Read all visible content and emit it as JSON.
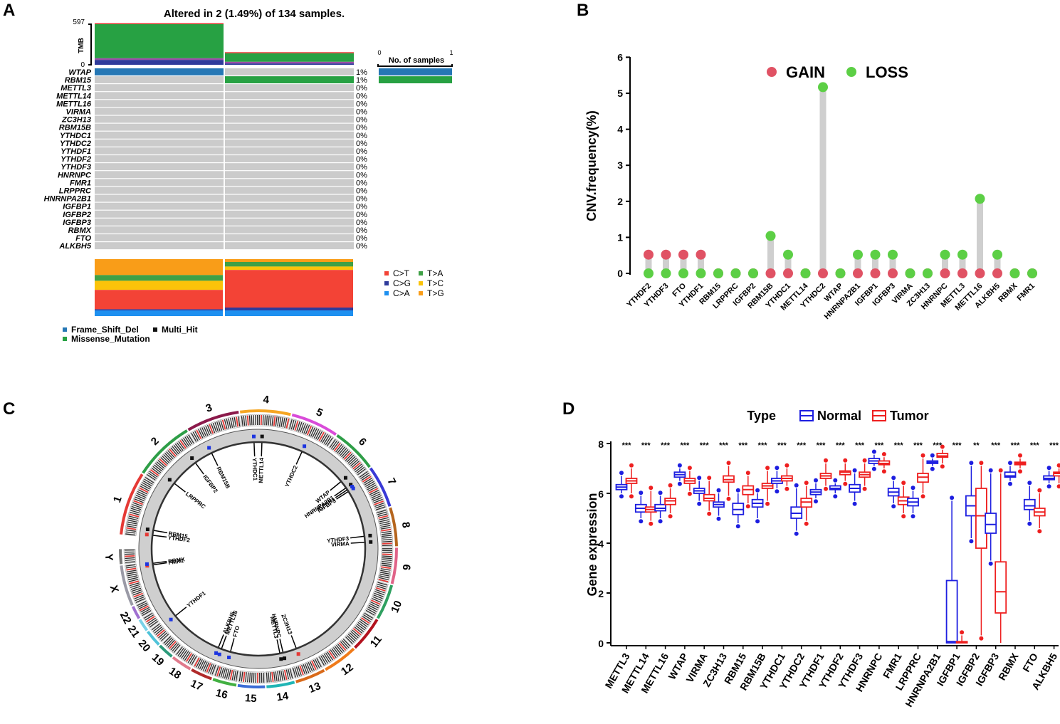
{
  "panels": {
    "a": "A",
    "b": "B",
    "c": "C",
    "d": "D"
  },
  "colors": {
    "wtap": "#2577b5",
    "rbm15": "#27a143",
    "grey": "#cbcbcb",
    "ct": "#f34336",
    "ta": "#3fa046",
    "cg": "#2f3b9b",
    "tc": "#fbc30a",
    "ca": "#1e90f0",
    "tg": "#f99d18",
    "gain": "#e05264",
    "loss": "#5ccf45",
    "stem": "#cfcfcf",
    "normal": "#1d1ee0",
    "tumor": "#ee1f1f"
  },
  "chart_data": [
    {
      "type": "oncoplot",
      "title": "Altered in 2 (1.49%) of 134 samples.",
      "tmb_label": "TMB",
      "tmb_axis": {
        "min": "0",
        "max": "597"
      },
      "samples": 2,
      "tmb": [
        597,
        170
      ],
      "tmb_breakdown": [
        {
          "missense": 500,
          "frameshift": 25,
          "multi_hit": 72
        },
        {
          "missense": 125,
          "frameshift": 25,
          "multi_hit": 20
        }
      ],
      "genes": [
        "WTAP",
        "RBM15",
        "METTL3",
        "METTL14",
        "METTL16",
        "VIRMA",
        "ZC3H13",
        "RBM15B",
        "YTHDC1",
        "YTHDC2",
        "YTHDF1",
        "YTHDF2",
        "YTHDF3",
        "HNRNPC",
        "FMR1",
        "LRPPRC",
        "HNRNPA2B1",
        "IGFBP1",
        "IGFBP2",
        "IGFBP3",
        "RBMX",
        "FTO",
        "ALKBH5"
      ],
      "percent": [
        "1%",
        "1%",
        "0%",
        "0%",
        "0%",
        "0%",
        "0%",
        "0%",
        "0%",
        "0%",
        "0%",
        "0%",
        "0%",
        "0%",
        "0%",
        "0%",
        "0%",
        "0%",
        "0%",
        "0%",
        "0%",
        "0%",
        "0%"
      ],
      "alterations": [
        {
          "gene": "WTAP",
          "sample": 1,
          "type": "Frame_Shift_Del"
        },
        {
          "gene": "RBM15",
          "sample": 2,
          "type": "Missense_Mutation"
        }
      ],
      "no_samples_axis": {
        "title": "No. of samples",
        "min": "0",
        "max": "1"
      },
      "no_samples": [
        1,
        1
      ],
      "titv": [
        {
          "C>T": 0.34,
          "T>A": 0.1,
          "C>G": 0.02,
          "T>C": 0.16,
          "C>A": 0.1,
          "T>G": 0.28
        },
        {
          "C>T": 0.66,
          "T>A": 0.08,
          "C>G": 0.05,
          "T>C": 0.06,
          "C>A": 0.1,
          "T>G": 0.05
        }
      ],
      "titv_legend": [
        "C>T",
        "T>A",
        "C>G",
        "T>C",
        "C>A",
        "T>G"
      ],
      "variant_legend": [
        "Frame_Shift_Del",
        "Multi_Hit",
        "Missense_Mutation"
      ]
    },
    {
      "type": "lollipop",
      "ylabel": "CNV.frequency(%)",
      "ylim": [
        0,
        6
      ],
      "yticks": [
        "0",
        "1",
        "2",
        "3",
        "4",
        "5",
        "6"
      ],
      "legend": [
        "GAIN",
        "LOSS"
      ],
      "categories": [
        "YTHDF2",
        "YTHDF3",
        "FTO",
        "YTHDF1",
        "RBM15",
        "LRPPRC",
        "IGFBP2",
        "RBM15B",
        "YTHDC1",
        "METTL14",
        "YTHDC2",
        "WTAP",
        "HNRNPA2B1",
        "IGFBP1",
        "IGFBP3",
        "VIRMA",
        "ZC3H13",
        "HNRNPC",
        "METTL3",
        "METTL16",
        "ALKBH5",
        "RBMX",
        "FMR1"
      ],
      "gain": [
        0.52,
        0.52,
        0.52,
        0.52,
        0,
        0,
        0,
        0,
        0,
        0,
        0,
        0,
        0,
        0,
        0,
        0,
        0,
        0,
        0,
        0,
        0,
        0,
        0
      ],
      "loss": [
        0,
        0,
        0,
        0,
        0,
        0,
        0,
        1.04,
        0.52,
        0,
        5.17,
        0,
        0.52,
        0.52,
        0.52,
        0,
        0,
        0.52,
        0.52,
        2.07,
        0.52,
        0,
        0
      ]
    },
    {
      "type": "circos",
      "chromosomes": [
        "1",
        "2",
        "3",
        "4",
        "5",
        "6",
        "7",
        "8",
        "9",
        "10",
        "11",
        "12",
        "13",
        "14",
        "15",
        "16",
        "17",
        "18",
        "19",
        "20",
        "21",
        "22",
        "X",
        "Y"
      ],
      "genes": [
        {
          "name": "FMR1",
          "c": "X",
          "f": 0.9,
          "mark": "red"
        },
        {
          "name": "RBMX",
          "c": "X",
          "f": 0.95,
          "mark": "blue"
        },
        {
          "name": "YTHDF2",
          "c": "1",
          "f": 0.05,
          "mark": "red"
        },
        {
          "name": "RBM15",
          "c": "1",
          "f": 0.15,
          "mark": "black"
        },
        {
          "name": "LRPPRC",
          "c": "2",
          "f": 0.18,
          "mark": "black"
        },
        {
          "name": "IGFBP2",
          "c": "2",
          "f": 0.8,
          "mark": "black"
        },
        {
          "name": "RBM15B",
          "c": "3",
          "f": 0.2,
          "mark": "blue"
        },
        {
          "name": "YTHDC1",
          "c": "4",
          "f": 0.25,
          "mark": "blue"
        },
        {
          "name": "METTL14",
          "c": "4",
          "f": 0.45,
          "mark": "black"
        },
        {
          "name": "YTHDC2",
          "c": "5",
          "f": 0.5,
          "mark": "blue"
        },
        {
          "name": "WTAP",
          "c": "6",
          "f": 0.85,
          "mark": "black"
        },
        {
          "name": "HNRNPA2B1",
          "c": "7",
          "f": 0.05,
          "mark": "black"
        },
        {
          "name": "IGFBP1",
          "c": "7",
          "f": 0.12,
          "mark": "blue"
        },
        {
          "name": "IGFBP3",
          "c": "7",
          "f": 0.18,
          "mark": "blue"
        },
        {
          "name": "YTHDF3",
          "c": "8",
          "f": 0.65,
          "mark": "black"
        },
        {
          "name": "VIRMA",
          "c": "8",
          "f": 0.85,
          "mark": "black"
        },
        {
          "name": "ZC3H13",
          "c": "13",
          "f": 0.6,
          "mark": "red"
        },
        {
          "name": "METTL3",
          "c": "14",
          "f": 0.3,
          "mark": "black"
        },
        {
          "name": "HNRNPC",
          "c": "14",
          "f": 0.15,
          "mark": "black"
        },
        {
          "name": "FTO",
          "c": "16",
          "f": 0.6,
          "mark": "blue"
        },
        {
          "name": "METTL16",
          "c": "17",
          "f": 0.05,
          "mark": "blue"
        },
        {
          "name": "ALKBH5",
          "c": "17",
          "f": 0.25,
          "mark": "blue"
        },
        {
          "name": "YTHDF1",
          "c": "20",
          "f": 0.7,
          "mark": "blue"
        }
      ]
    },
    {
      "type": "boxplot",
      "legend_title": "Type",
      "series_names": [
        "Normal",
        "Tumor"
      ],
      "ylabel": "Gene expression",
      "ylim": [
        0,
        8
      ],
      "yticks": [
        "0",
        "2",
        "4",
        "6",
        "8"
      ],
      "categories": [
        "METTL3",
        "METTL14",
        "METTL16",
        "WTAP",
        "VIRMA",
        "ZC3H13",
        "RBM15",
        "RBM15B",
        "YTHDC1",
        "YTHDC2",
        "YTHDF1",
        "YTHDF2",
        "YTHDF3",
        "HNRNPC",
        "FMR1",
        "LRPPRC",
        "HNRNPA2B1",
        "IGFBP1",
        "IGFBP2",
        "IGFBP3",
        "RBMX",
        "FTO",
        "ALKBH5"
      ],
      "significance": [
        "***",
        "***",
        "***",
        "***",
        "***",
        "***",
        "***",
        "***",
        "***",
        "***",
        "***",
        "***",
        "***",
        "***",
        "***",
        "***",
        "***",
        "***",
        "**",
        "***",
        "***",
        "***",
        "***"
      ],
      "normal": [
        [
          6.0,
          6.15,
          6.25,
          6.35,
          6.7
        ],
        [
          5.0,
          5.25,
          5.4,
          5.55,
          5.9
        ],
        [
          5.0,
          5.3,
          5.4,
          5.55,
          5.9
        ],
        [
          6.5,
          6.65,
          6.75,
          6.85,
          7.0
        ],
        [
          5.7,
          6.0,
          6.1,
          6.2,
          6.5
        ],
        [
          5.1,
          5.45,
          5.55,
          5.65,
          6.0
        ],
        [
          4.8,
          5.15,
          5.35,
          5.6,
          6.0
        ],
        [
          5.0,
          5.45,
          5.6,
          5.75,
          6.0
        ],
        [
          6.2,
          6.4,
          6.5,
          6.6,
          6.9
        ],
        [
          4.5,
          5.0,
          5.2,
          5.45,
          6.2
        ],
        [
          5.8,
          5.95,
          6.05,
          6.15,
          6.4
        ],
        [
          6.0,
          6.15,
          6.2,
          6.3,
          6.4
        ],
        [
          5.7,
          6.05,
          6.2,
          6.35,
          6.8
        ],
        [
          7.1,
          7.2,
          7.3,
          7.4,
          7.55
        ],
        [
          5.6,
          5.9,
          6.05,
          6.2,
          6.5
        ],
        [
          5.2,
          5.5,
          5.65,
          5.8,
          6.1
        ],
        [
          7.1,
          7.2,
          7.25,
          7.3,
          7.4
        ],
        [
          0,
          0,
          0.05,
          2.5,
          5.7
        ],
        [
          4.2,
          5.1,
          5.5,
          5.9,
          7.1
        ],
        [
          3.3,
          4.4,
          4.75,
          5.2,
          6.8
        ],
        [
          6.5,
          6.65,
          6.7,
          6.85,
          7.1
        ],
        [
          4.9,
          5.35,
          5.5,
          5.75,
          6.3
        ],
        [
          6.4,
          6.55,
          6.6,
          6.7,
          6.9
        ]
      ],
      "tumor": [
        [
          6.0,
          6.4,
          6.5,
          6.6,
          7.0
        ],
        [
          4.9,
          5.25,
          5.35,
          5.45,
          6.1
        ],
        [
          5.2,
          5.55,
          5.7,
          5.8,
          6.2
        ],
        [
          6.1,
          6.4,
          6.5,
          6.6,
          6.9
        ],
        [
          5.3,
          5.7,
          5.8,
          5.95,
          6.5
        ],
        [
          5.9,
          6.45,
          6.55,
          6.7,
          7.1
        ],
        [
          5.6,
          5.95,
          6.15,
          6.3,
          6.7
        ],
        [
          5.7,
          6.2,
          6.3,
          6.4,
          6.9
        ],
        [
          6.3,
          6.5,
          6.6,
          6.7,
          7.0
        ],
        [
          4.9,
          5.45,
          5.65,
          5.8,
          6.3
        ],
        [
          6.3,
          6.6,
          6.7,
          6.8,
          7.2
        ],
        [
          6.5,
          6.75,
          6.85,
          6.9,
          7.2
        ],
        [
          6.3,
          6.65,
          6.75,
          6.85,
          7.2
        ],
        [
          7.0,
          7.15,
          7.2,
          7.3,
          7.45
        ],
        [
          5.2,
          5.55,
          5.7,
          5.85,
          6.3
        ],
        [
          6.0,
          6.45,
          6.65,
          6.8,
          7.4
        ],
        [
          7.2,
          7.45,
          7.5,
          7.6,
          7.75
        ],
        [
          0,
          0,
          0.02,
          0.05,
          0.3
        ],
        [
          0.3,
          3.8,
          5.1,
          6.2,
          7.1
        ],
        [
          0,
          1.2,
          2.05,
          3.25,
          6.8
        ],
        [
          7.0,
          7.15,
          7.2,
          7.25,
          7.4
        ],
        [
          4.6,
          5.1,
          5.25,
          5.4,
          6.0
        ],
        [
          6.4,
          6.7,
          6.8,
          6.85,
          7.0
        ]
      ]
    }
  ]
}
